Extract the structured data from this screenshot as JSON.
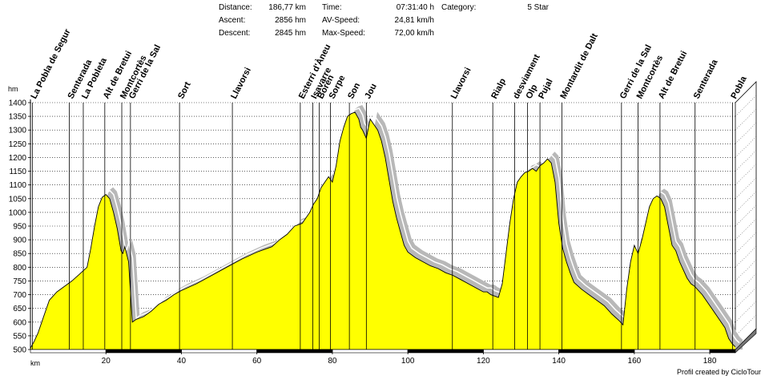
{
  "summary": {
    "distance_label": "Distance:",
    "distance_value": "186,77 km",
    "ascent_label": "Ascent:",
    "ascent_value": "2856 hm",
    "descent_label": "Descent:",
    "descent_value": "2845 hm",
    "time_label": "Time:",
    "time_value": "07:31:40 h",
    "avspeed_label": "AV-Speed:",
    "avspeed_value": "24,81 km/h",
    "maxspeed_label": "Max-Speed:",
    "maxspeed_value": "72,00 km/h",
    "category_label": "Category:",
    "category_value": "5 Star"
  },
  "credit": "Profil created by CicloTour",
  "colors": {
    "fill": "#ffff00",
    "shadow": "#b8b8b8",
    "shadow_line": "#ffffff",
    "outline": "#000000",
    "grid": "#000000"
  },
  "chart_data": {
    "type": "area",
    "xlabel": "km",
    "ylabel": "hm",
    "xlim": [
      0,
      186.77
    ],
    "ylim": [
      500,
      1400
    ],
    "x_ticks": [
      20,
      40,
      60,
      80,
      100,
      120,
      140,
      160,
      180
    ],
    "y_ticks": [
      500,
      550,
      600,
      650,
      700,
      750,
      800,
      850,
      900,
      950,
      1000,
      1050,
      1100,
      1150,
      1200,
      1250,
      1300,
      1350,
      1400
    ],
    "grid": true,
    "series": [
      {
        "x": [
          0,
          1,
          2,
          3,
          4,
          5,
          7,
          9,
          11,
          13,
          15,
          16,
          17,
          18,
          19,
          20,
          21,
          22,
          23,
          24,
          24.5,
          25,
          26,
          27,
          28,
          30,
          32,
          34,
          36,
          38,
          40,
          44,
          48,
          52,
          56,
          60,
          62,
          64,
          66,
          68,
          70,
          72,
          74,
          75,
          76,
          77,
          78,
          79,
          80,
          81,
          82,
          83,
          84,
          85,
          86,
          87,
          87.5,
          88,
          89,
          90,
          91,
          92,
          93,
          94,
          95,
          96,
          97,
          98,
          99,
          100,
          102,
          104,
          106,
          108,
          110,
          112,
          114,
          116,
          118,
          120,
          121,
          122,
          123,
          124,
          125,
          126,
          127,
          128,
          129,
          130,
          131,
          132,
          133,
          134,
          135,
          136,
          137,
          138,
          139,
          140,
          141,
          142,
          143,
          144,
          146,
          148,
          150,
          152,
          154,
          156,
          157,
          158,
          159,
          160,
          161,
          162,
          163,
          164,
          165,
          166,
          167,
          168,
          169,
          170,
          171,
          172,
          173,
          174,
          175,
          176,
          178,
          180,
          182,
          184,
          185,
          186,
          186.77
        ],
        "y": [
          505,
          530,
          560,
          600,
          640,
          680,
          710,
          730,
          750,
          775,
          800,
          870,
          950,
          1020,
          1055,
          1065,
          1050,
          1000,
          940,
          860,
          850,
          875,
          820,
          600,
          610,
          620,
          640,
          665,
          680,
          700,
          715,
          740,
          770,
          800,
          830,
          855,
          865,
          875,
          900,
          920,
          950,
          960,
          1000,
          1030,
          1050,
          1090,
          1110,
          1130,
          1110,
          1170,
          1260,
          1310,
          1350,
          1360,
          1365,
          1340,
          1310,
          1300,
          1270,
          1340,
          1320,
          1300,
          1260,
          1200,
          1120,
          1040,
          980,
          930,
          880,
          855,
          835,
          820,
          805,
          795,
          780,
          770,
          755,
          740,
          725,
          710,
          710,
          700,
          695,
          690,
          740,
          850,
          960,
          1050,
          1110,
          1130,
          1145,
          1150,
          1160,
          1150,
          1170,
          1180,
          1195,
          1180,
          1110,
          960,
          870,
          820,
          780,
          745,
          720,
          700,
          680,
          660,
          630,
          605,
          590,
          720,
          820,
          880,
          850,
          900,
          960,
          1020,
          1050,
          1060,
          1050,
          1020,
          950,
          880,
          860,
          820,
          790,
          760,
          740,
          730,
          700,
          660,
          620,
          580,
          540,
          520,
          510
        ]
      }
    ],
    "place_labels": [
      {
        "text": "La Pobla de Segur",
        "x": 0.5
      },
      {
        "text": "Senterada",
        "x": 10.3
      },
      {
        "text": "La Pobleta",
        "x": 14
      },
      {
        "text": "Alt de Bretui",
        "x": 19.7
      },
      {
        "text": "Montcortès",
        "x": 24.2
      },
      {
        "text": "Gerri de la Sal",
        "x": 26.5
      },
      {
        "text": "Sort",
        "x": 39.5
      },
      {
        "text": "Llavorsi",
        "x": 53.5
      },
      {
        "text": "Esterri d'Àneu",
        "x": 71.5
      },
      {
        "text": "Isavarre",
        "x": 74.8
      },
      {
        "text": "Borén",
        "x": 76.5
      },
      {
        "text": "Sorpe",
        "x": 79.5
      },
      {
        "text": "Son",
        "x": 84.5
      },
      {
        "text": "Jou",
        "x": 89
      },
      {
        "text": "Llavorsi",
        "x": 111.8
      },
      {
        "text": "Rialp",
        "x": 122.5
      },
      {
        "text": "desviament",
        "x": 128.3
      },
      {
        "text": "Olp",
        "x": 131.7
      },
      {
        "text": "Pujal",
        "x": 135
      },
      {
        "text": "Montardit de Dalt",
        "x": 140.8
      },
      {
        "text": "Gerri de la Sal",
        "x": 156.6
      },
      {
        "text": "Montcortès",
        "x": 161
      },
      {
        "text": "Alt de Bretui",
        "x": 166.8
      },
      {
        "text": "Senterada",
        "x": 176.1
      },
      {
        "text": "Pobla",
        "x": 186
      }
    ]
  }
}
